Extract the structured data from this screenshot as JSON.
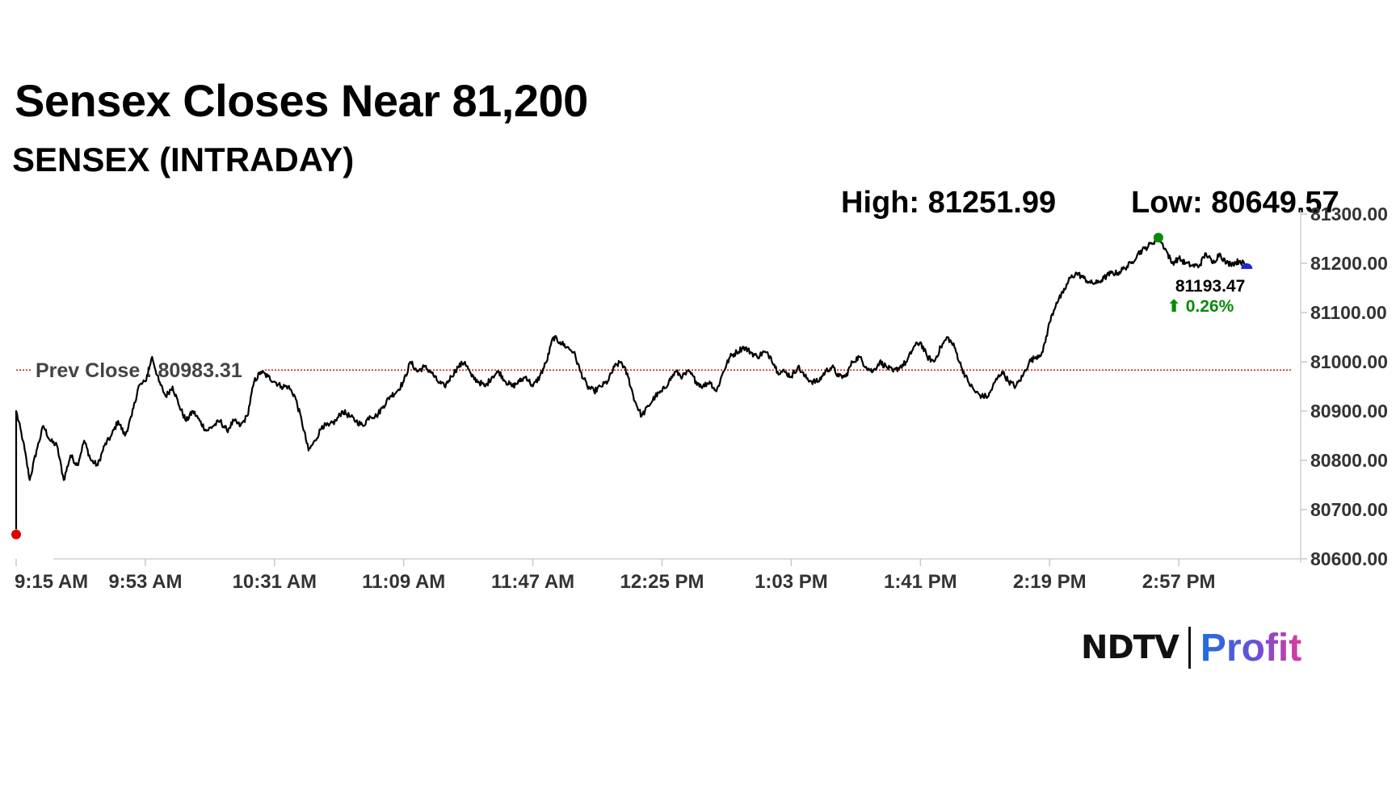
{
  "header": {
    "title": "Sensex Closes Near 81,200",
    "subtitle": "SENSEX (INTRADAY)"
  },
  "stats": {
    "high_label": "High: 81251.99",
    "low_label": "Low: 80649.57"
  },
  "prev_close": {
    "label": "Prev Close : 80983.31",
    "value": 80983.31
  },
  "last": {
    "value_label": "81193.47",
    "change_label": "⬆ 0.26%"
  },
  "logo": {
    "brand": "NDTV",
    "product": "Profit"
  },
  "colors": {
    "line": "#000000",
    "prev_close": "#c00000",
    "high_marker": "#0a8a0a",
    "low_marker": "#e00000",
    "last_marker": "#1a2ad0",
    "change_up": "#0a8a0a"
  },
  "chart_data": {
    "type": "line",
    "title": "SENSEX (INTRADAY)",
    "ylim": [
      80600,
      81300
    ],
    "yticks": [
      "80600.00",
      "80700.00",
      "80800.00",
      "80900.00",
      "81000.00",
      "81100.00",
      "81200.00",
      "81300.00"
    ],
    "xticks": [
      "9:15 AM",
      "9:53 AM",
      "10:31 AM",
      "11:09 AM",
      "11:47 AM",
      "12:25 PM",
      "1:03 PM",
      "1:41 PM",
      "2:19 PM",
      "2:57 PM"
    ],
    "x_start_minutes": 555,
    "x_end_minutes": 930,
    "grid": false,
    "series": [
      {
        "name": "",
        "points": [
          [
            "9:15 AM",
            80660
          ],
          [
            "9:15 AM",
            80900
          ],
          [
            "9:17 AM",
            80840
          ],
          [
            "9:19 AM",
            80760
          ],
          [
            "9:21 AM",
            80820
          ],
          [
            "9:23 AM",
            80870
          ],
          [
            "9:25 AM",
            80840
          ],
          [
            "9:27 AM",
            80830
          ],
          [
            "9:29 AM",
            80760
          ],
          [
            "9:31 AM",
            80810
          ],
          [
            "9:33 AM",
            80790
          ],
          [
            "9:35 AM",
            80840
          ],
          [
            "9:37 AM",
            80800
          ],
          [
            "9:39 AM",
            80790
          ],
          [
            "9:41 AM",
            80830
          ],
          [
            "9:43 AM",
            80850
          ],
          [
            "9:45 AM",
            80880
          ],
          [
            "9:47 AM",
            80850
          ],
          [
            "9:49 AM",
            80890
          ],
          [
            "9:51 AM",
            80950
          ],
          [
            "9:53 AM",
            80960
          ],
          [
            "9:55 AM",
            81010
          ],
          [
            "9:57 AM",
            80960
          ],
          [
            "9:59 AM",
            80930
          ],
          [
            "10:01 AM",
            80950
          ],
          [
            "10:03 AM",
            80910
          ],
          [
            "10:05 AM",
            80880
          ],
          [
            "10:07 AM",
            80900
          ],
          [
            "10:09 AM",
            80880
          ],
          [
            "10:11 AM",
            80860
          ],
          [
            "10:13 AM",
            80870
          ],
          [
            "10:15 AM",
            80880
          ],
          [
            "10:17 AM",
            80860
          ],
          [
            "10:19 AM",
            80880
          ],
          [
            "10:21 AM",
            80870
          ],
          [
            "10:23 AM",
            80890
          ],
          [
            "10:25 AM",
            80960
          ],
          [
            "10:27 AM",
            80980
          ],
          [
            "10:29 AM",
            80970
          ],
          [
            "10:31 AM",
            80960
          ],
          [
            "10:33 AM",
            80950
          ],
          [
            "10:35 AM",
            80950
          ],
          [
            "10:37 AM",
            80930
          ],
          [
            "10:39 AM",
            80880
          ],
          [
            "10:41 AM",
            80820
          ],
          [
            "10:43 AM",
            80840
          ],
          [
            "10:45 AM",
            80870
          ],
          [
            "10:47 AM",
            80870
          ],
          [
            "10:49 AM",
            80880
          ],
          [
            "10:51 AM",
            80900
          ],
          [
            "10:53 AM",
            80890
          ],
          [
            "10:55 AM",
            80880
          ],
          [
            "10:57 AM",
            80870
          ],
          [
            "10:59 AM",
            80890
          ],
          [
            "11:01 AM",
            80890
          ],
          [
            "11:03 AM",
            80910
          ],
          [
            "11:05 AM",
            80930
          ],
          [
            "11:07 AM",
            80940
          ],
          [
            "11:09 AM",
            80960
          ],
          [
            "11:11 AM",
            81000
          ],
          [
            "11:13 AM",
            80980
          ],
          [
            "11:15 AM",
            80990
          ],
          [
            "11:17 AM",
            80980
          ],
          [
            "11:19 AM",
            80960
          ],
          [
            "11:21 AM",
            80950
          ],
          [
            "11:23 AM",
            80970
          ],
          [
            "11:25 AM",
            80990
          ],
          [
            "11:27 AM",
            81000
          ],
          [
            "11:29 AM",
            80970
          ],
          [
            "11:31 AM",
            80960
          ],
          [
            "11:33 AM",
            80950
          ],
          [
            "11:35 AM",
            80970
          ],
          [
            "11:37 AM",
            80980
          ],
          [
            "11:39 AM",
            80960
          ],
          [
            "11:41 AM",
            80950
          ],
          [
            "11:43 AM",
            80960
          ],
          [
            "11:45 AM",
            80970
          ],
          [
            "11:47 AM",
            80950
          ],
          [
            "11:49 AM",
            80970
          ],
          [
            "11:51 AM",
            81000
          ],
          [
            "11:53 AM",
            81050
          ],
          [
            "11:55 AM",
            81040
          ],
          [
            "11:57 AM",
            81030
          ],
          [
            "11:59 AM",
            81020
          ],
          [
            "12:01 PM",
            80980
          ],
          [
            "12:03 PM",
            80950
          ],
          [
            "12:05 PM",
            80940
          ],
          [
            "12:07 PM",
            80950
          ],
          [
            "12:09 PM",
            80960
          ],
          [
            "12:11 PM",
            80990
          ],
          [
            "12:13 PM",
            81000
          ],
          [
            "12:15 PM",
            80970
          ],
          [
            "12:17 PM",
            80920
          ],
          [
            "12:19 PM",
            80890
          ],
          [
            "12:21 PM",
            80910
          ],
          [
            "12:23 PM",
            80930
          ],
          [
            "12:25 PM",
            80940
          ],
          [
            "12:27 PM",
            80960
          ],
          [
            "12:29 PM",
            80980
          ],
          [
            "12:31 PM",
            80970
          ],
          [
            "12:33 PM",
            80980
          ],
          [
            "12:35 PM",
            80960
          ],
          [
            "12:37 PM",
            80950
          ],
          [
            "12:39 PM",
            80960
          ],
          [
            "12:41 PM",
            80940
          ],
          [
            "12:43 PM",
            80980
          ],
          [
            "12:45 PM",
            81010
          ],
          [
            "12:47 PM",
            81020
          ],
          [
            "12:49 PM",
            81030
          ],
          [
            "12:51 PM",
            81020
          ],
          [
            "12:53 PM",
            81010
          ],
          [
            "12:55 PM",
            81020
          ],
          [
            "12:57 PM",
            81010
          ],
          [
            "12:59 PM",
            80980
          ],
          [
            "1:01 PM",
            80980
          ],
          [
            "1:03 PM",
            80970
          ],
          [
            "1:05 PM",
            80990
          ],
          [
            "1:07 PM",
            80970
          ],
          [
            "1:09 PM",
            80960
          ],
          [
            "1:11 PM",
            80960
          ],
          [
            "1:13 PM",
            80980
          ],
          [
            "1:15 PM",
            80990
          ],
          [
            "1:17 PM",
            80970
          ],
          [
            "1:19 PM",
            80970
          ],
          [
            "1:21 PM",
            81000
          ],
          [
            "1:23 PM",
            81010
          ],
          [
            "1:25 PM",
            80990
          ],
          [
            "1:27 PM",
            80980
          ],
          [
            "1:29 PM",
            81000
          ],
          [
            "1:31 PM",
            80990
          ],
          [
            "1:33 PM",
            80980
          ],
          [
            "1:35 PM",
            80990
          ],
          [
            "1:37 PM",
            81000
          ],
          [
            "1:39 PM",
            81030
          ],
          [
            "1:41 PM",
            81040
          ],
          [
            "1:43 PM",
            81010
          ],
          [
            "1:45 PM",
            81000
          ],
          [
            "1:47 PM",
            81030
          ],
          [
            "1:49 PM",
            81050
          ],
          [
            "1:51 PM",
            81030
          ],
          [
            "1:53 PM",
            80990
          ],
          [
            "1:55 PM",
            80960
          ],
          [
            "1:57 PM",
            80940
          ],
          [
            "1:59 PM",
            80930
          ],
          [
            "2:01 PM",
            80930
          ],
          [
            "2:03 PM",
            80960
          ],
          [
            "2:05 PM",
            80980
          ],
          [
            "2:07 PM",
            80960
          ],
          [
            "2:09 PM",
            80950
          ],
          [
            "2:11 PM",
            80970
          ],
          [
            "2:13 PM",
            81000
          ],
          [
            "2:15 PM",
            81010
          ],
          [
            "2:17 PM",
            81020
          ],
          [
            "2:19 PM",
            81080
          ],
          [
            "2:21 PM",
            81120
          ],
          [
            "2:23 PM",
            81140
          ],
          [
            "2:25 PM",
            81170
          ],
          [
            "2:27 PM",
            81180
          ],
          [
            "2:29 PM",
            81170
          ],
          [
            "2:31 PM",
            81160
          ],
          [
            "2:33 PM",
            81160
          ],
          [
            "2:35 PM",
            81170
          ],
          [
            "2:37 PM",
            81180
          ],
          [
            "2:39 PM",
            81180
          ],
          [
            "2:41 PM",
            81190
          ],
          [
            "2:43 PM",
            81200
          ],
          [
            "2:45 PM",
            81220
          ],
          [
            "2:47 PM",
            81230
          ],
          [
            "2:49 PM",
            81240
          ],
          [
            "2:51 PM",
            81252
          ],
          [
            "2:53 PM",
            81230
          ],
          [
            "2:55 PM",
            81200
          ],
          [
            "2:57 PM",
            81210
          ],
          [
            "2:59 PM",
            81200
          ],
          [
            "3:01 PM",
            81195
          ],
          [
            "3:03 PM",
            81195
          ],
          [
            "3:05 PM",
            81220
          ],
          [
            "3:07 PM",
            81200
          ],
          [
            "3:09 PM",
            81220
          ],
          [
            "3:11 PM",
            81200
          ],
          [
            "3:13 PM",
            81200
          ],
          [
            "3:15 PM",
            81205
          ],
          [
            "3:17 PM",
            81193.47
          ]
        ]
      }
    ],
    "high": {
      "time": "2:51 PM",
      "value": 81251.99
    },
    "low": {
      "time": "9:15 AM",
      "value": 80649.57
    },
    "last_point": {
      "time": "3:17 PM",
      "value": 81193.47
    }
  }
}
